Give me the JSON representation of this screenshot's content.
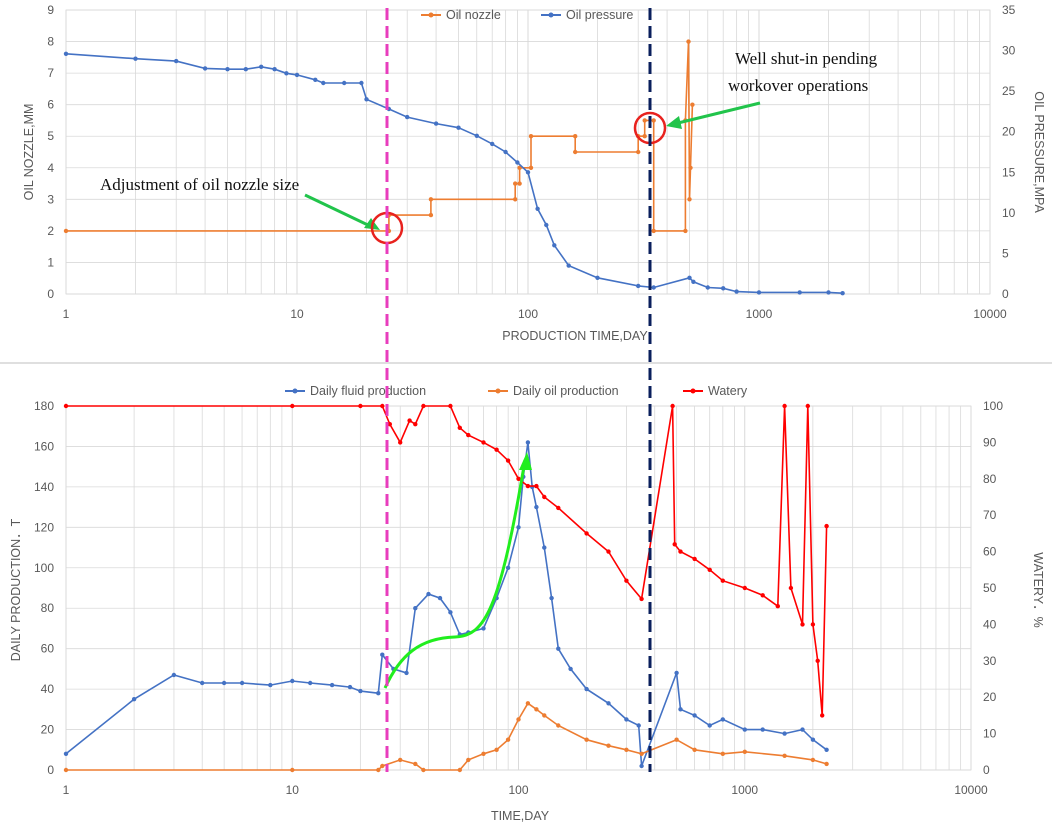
{
  "chart_data": [
    {
      "type": "line",
      "x_scale": "log",
      "xlabel": "PRODUCTION TIME,DAY",
      "ylabel": "OIL NOZZLE,MM",
      "y2label": "OIL PRESSURE,MPA",
      "xlim": [
        1,
        10000
      ],
      "ylim": [
        0,
        9
      ],
      "y2lim": [
        0,
        35
      ],
      "x_ticks": [
        "1",
        "10",
        "100",
        "1000",
        "10000"
      ],
      "y_ticks": [
        "0",
        "1",
        "2",
        "3",
        "4",
        "5",
        "6",
        "7",
        "8",
        "9"
      ],
      "y2_ticks": [
        "0",
        "5",
        "10",
        "15",
        "20",
        "25",
        "30",
        "35"
      ],
      "legend_placement": "top",
      "series": [
        {
          "name": "Oil nozzle",
          "color": "#ed7d31",
          "axis": "left",
          "points": [
            [
              1,
              2
            ],
            [
              25,
              2
            ],
            [
              25,
              2.5
            ],
            [
              38,
              2.5
            ],
            [
              38,
              3
            ],
            [
              88,
              3
            ],
            [
              88,
              3.5
            ],
            [
              92,
              3.5
            ],
            [
              92,
              4
            ],
            [
              103,
              4
            ],
            [
              103,
              5
            ],
            [
              160,
              5
            ],
            [
              160,
              4.5
            ],
            [
              300,
              4.5
            ],
            [
              300,
              5
            ],
            [
              320,
              5
            ],
            [
              320,
              5.5
            ],
            [
              350,
              5.5
            ],
            [
              350,
              2
            ],
            [
              480,
              2
            ],
            [
              480,
              5.5
            ],
            [
              495,
              8
            ],
            [
              500,
              3
            ],
            [
              505,
              4
            ],
            [
              515,
              6
            ]
          ]
        },
        {
          "name": "Oil pressure",
          "color": "#4472c4",
          "axis": "right",
          "points": [
            [
              1,
              29.6
            ],
            [
              2,
              29.0
            ],
            [
              3,
              28.7
            ],
            [
              4,
              27.8
            ],
            [
              5,
              27.7
            ],
            [
              6,
              27.7
            ],
            [
              7,
              28.0
            ],
            [
              8,
              27.7
            ],
            [
              9,
              27.2
            ],
            [
              10,
              27.0
            ],
            [
              12,
              26.4
            ],
            [
              13,
              26.0
            ],
            [
              16,
              26.0
            ],
            [
              19,
              26.0
            ],
            [
              20,
              24.0
            ],
            [
              25,
              22.8
            ],
            [
              30,
              21.8
            ],
            [
              40,
              21.0
            ],
            [
              50,
              20.5
            ],
            [
              60,
              19.5
            ],
            [
              70,
              18.5
            ],
            [
              80,
              17.5
            ],
            [
              90,
              16.2
            ],
            [
              100,
              15.0
            ],
            [
              110,
              10.5
            ],
            [
              120,
              8.5
            ],
            [
              130,
              6.0
            ],
            [
              150,
              3.5
            ],
            [
              200,
              2.0
            ],
            [
              300,
              1.0
            ],
            [
              350,
              0.8
            ],
            [
              500,
              2.0
            ],
            [
              520,
              1.5
            ],
            [
              600,
              0.8
            ],
            [
              700,
              0.7
            ],
            [
              800,
              0.3
            ],
            [
              1000,
              0.2
            ],
            [
              1500,
              0.2
            ],
            [
              2000,
              0.2
            ],
            [
              2300,
              0.1
            ]
          ]
        }
      ],
      "annotations": [
        "Adjustment of oil nozzle size",
        "Well shut-in pending",
        "workover operations"
      ]
    },
    {
      "type": "line",
      "x_scale": "log",
      "xlabel": "TIME,DAY",
      "ylabel": "DAILY PRODUCTION．T",
      "y2label": "WATERY．%",
      "xlim": [
        1,
        10000
      ],
      "ylim": [
        0,
        180
      ],
      "y2lim": [
        0,
        100
      ],
      "x_ticks": [
        "1",
        "10",
        "100",
        "1000",
        "10000"
      ],
      "y_ticks": [
        "0",
        "20",
        "40",
        "60",
        "80",
        "100",
        "120",
        "140",
        "160",
        "180"
      ],
      "y2_ticks": [
        "0",
        "10",
        "20",
        "30",
        "40",
        "50",
        "60",
        "70",
        "80",
        "90",
        "100"
      ],
      "legend_placement": "top",
      "series": [
        {
          "name": "Daily fluid production",
          "color": "#4472c4",
          "axis": "left",
          "points": [
            [
              1,
              8
            ],
            [
              2,
              35
            ],
            [
              3,
              47
            ],
            [
              4,
              43
            ],
            [
              5,
              43
            ],
            [
              6,
              43
            ],
            [
              8,
              42
            ],
            [
              10,
              44
            ],
            [
              12,
              43
            ],
            [
              15,
              42
            ],
            [
              18,
              41
            ],
            [
              20,
              39
            ],
            [
              24,
              38
            ],
            [
              25,
              57
            ],
            [
              28,
              50
            ],
            [
              32,
              48
            ],
            [
              35,
              80
            ],
            [
              40,
              87
            ],
            [
              45,
              85
            ],
            [
              50,
              78
            ],
            [
              55,
              67
            ],
            [
              60,
              68
            ],
            [
              70,
              70
            ],
            [
              80,
              85
            ],
            [
              90,
              100
            ],
            [
              100,
              120
            ],
            [
              105,
              145
            ],
            [
              110,
              162
            ],
            [
              115,
              140
            ],
            [
              120,
              130
            ],
            [
              130,
              110
            ],
            [
              140,
              85
            ],
            [
              150,
              60
            ],
            [
              170,
              50
            ],
            [
              200,
              40
            ],
            [
              250,
              33
            ],
            [
              300,
              25
            ],
            [
              340,
              22
            ],
            [
              350,
              2
            ],
            [
              500,
              48
            ],
            [
              520,
              30
            ],
            [
              600,
              27
            ],
            [
              700,
              22
            ],
            [
              800,
              25
            ],
            [
              1000,
              20
            ],
            [
              1200,
              20
            ],
            [
              1500,
              18
            ],
            [
              1800,
              20
            ],
            [
              2000,
              15
            ],
            [
              2300,
              10
            ]
          ]
        },
        {
          "name": "Daily oil production",
          "color": "#ed7d31",
          "axis": "left",
          "points": [
            [
              1,
              0
            ],
            [
              10,
              0
            ],
            [
              24,
              0
            ],
            [
              25,
              2
            ],
            [
              30,
              5
            ],
            [
              35,
              3
            ],
            [
              38,
              0
            ],
            [
              55,
              0
            ],
            [
              60,
              5
            ],
            [
              70,
              8
            ],
            [
              80,
              10
            ],
            [
              90,
              15
            ],
            [
              100,
              25
            ],
            [
              110,
              33
            ],
            [
              120,
              30
            ],
            [
              130,
              27
            ],
            [
              150,
              22
            ],
            [
              200,
              15
            ],
            [
              250,
              12
            ],
            [
              300,
              10
            ],
            [
              350,
              8
            ],
            [
              500,
              15
            ],
            [
              600,
              10
            ],
            [
              800,
              8
            ],
            [
              1000,
              9
            ],
            [
              1500,
              7
            ],
            [
              2000,
              5
            ],
            [
              2300,
              3
            ]
          ]
        },
        {
          "name": "Watery",
          "color": "#ff0000",
          "axis": "right",
          "points": [
            [
              1,
              100
            ],
            [
              10,
              100
            ],
            [
              20,
              100
            ],
            [
              25,
              100
            ],
            [
              27,
              95
            ],
            [
              30,
              90
            ],
            [
              33,
              96
            ],
            [
              35,
              95
            ],
            [
              38,
              100
            ],
            [
              50,
              100
            ],
            [
              55,
              94
            ],
            [
              60,
              92
            ],
            [
              70,
              90
            ],
            [
              80,
              88
            ],
            [
              90,
              85
            ],
            [
              100,
              80
            ],
            [
              110,
              78
            ],
            [
              120,
              78
            ],
            [
              130,
              75
            ],
            [
              150,
              72
            ],
            [
              200,
              65
            ],
            [
              250,
              60
            ],
            [
              300,
              52
            ],
            [
              350,
              47
            ],
            [
              480,
              100
            ],
            [
              490,
              62
            ],
            [
              520,
              60
            ],
            [
              600,
              58
            ],
            [
              700,
              55
            ],
            [
              800,
              52
            ],
            [
              1000,
              50
            ],
            [
              1200,
              48
            ],
            [
              1400,
              45
            ],
            [
              1500,
              100
            ],
            [
              1600,
              50
            ],
            [
              1800,
              40
            ],
            [
              1900,
              100
            ],
            [
              2000,
              40
            ],
            [
              2100,
              30
            ],
            [
              2200,
              15
            ],
            [
              2300,
              67
            ]
          ]
        }
      ]
    }
  ]
}
